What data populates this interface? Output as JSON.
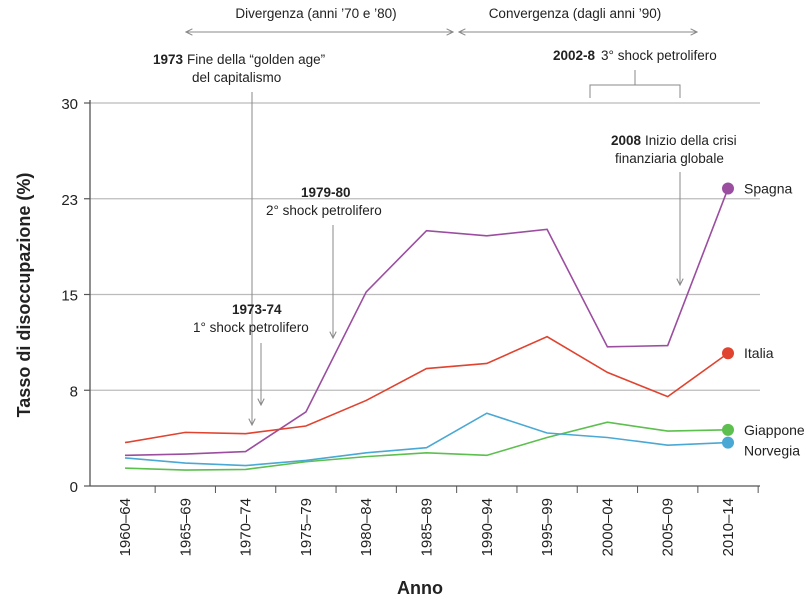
{
  "chart_data": {
    "type": "line",
    "xlabel": "Anno",
    "ylabel": "Tasso di disoccupazione (%)",
    "ylim": [
      0,
      30
    ],
    "yticks": [
      0,
      7.5,
      15,
      22.5,
      30
    ],
    "ytick_labels": [
      "0",
      "8",
      "15",
      "23",
      "30"
    ],
    "grid": true,
    "categories": [
      "1960–64",
      "1965–69",
      "1970–74",
      "1975–79",
      "1980–84",
      "1985–89",
      "1990–94",
      "1995–99",
      "2000–04",
      "2005–09",
      "2010–14"
    ],
    "series": [
      {
        "name": "Spagna",
        "color": "#9b4ea0",
        "values": [
          2.4,
          2.5,
          2.7,
          5.8,
          15.2,
          20.0,
          19.6,
          20.1,
          10.9,
          11.0,
          23.3
        ]
      },
      {
        "name": "Italia",
        "color": "#e0432f",
        "values": [
          3.4,
          4.2,
          4.1,
          4.7,
          6.7,
          9.2,
          9.6,
          11.7,
          8.9,
          7.0,
          10.4
        ]
      },
      {
        "name": "Giappone",
        "color": "#5cbf4e",
        "values": [
          1.4,
          1.25,
          1.3,
          1.9,
          2.3,
          2.6,
          2.4,
          3.8,
          5.0,
          4.3,
          4.4
        ]
      },
      {
        "name": "Norvegia",
        "color": "#4aa8d4",
        "values": [
          2.2,
          1.8,
          1.6,
          2.0,
          2.6,
          3.0,
          5.7,
          4.15,
          3.8,
          3.2,
          3.4
        ]
      }
    ],
    "annotations": {
      "divergence": "Divergenza (anni ’70 e ’80)",
      "convergence": "Convergenza (dagli anni ’90)",
      "a1973_year": "1973",
      "a1973_line1": "Fine della “golden age”",
      "a1973_line2": "del capitalismo",
      "a7374_year": "1973-74",
      "a7374_text": "1° shock petrolifero",
      "a7980_year": "1979-80",
      "a7980_text": "2° shock petrolifero",
      "a2002_year": "2002-8",
      "a2002_text": "3° shock petrolifero",
      "a2008_year": "2008",
      "a2008_line1": "Inizio della crisi",
      "a2008_line2": "finanziaria globale"
    }
  }
}
